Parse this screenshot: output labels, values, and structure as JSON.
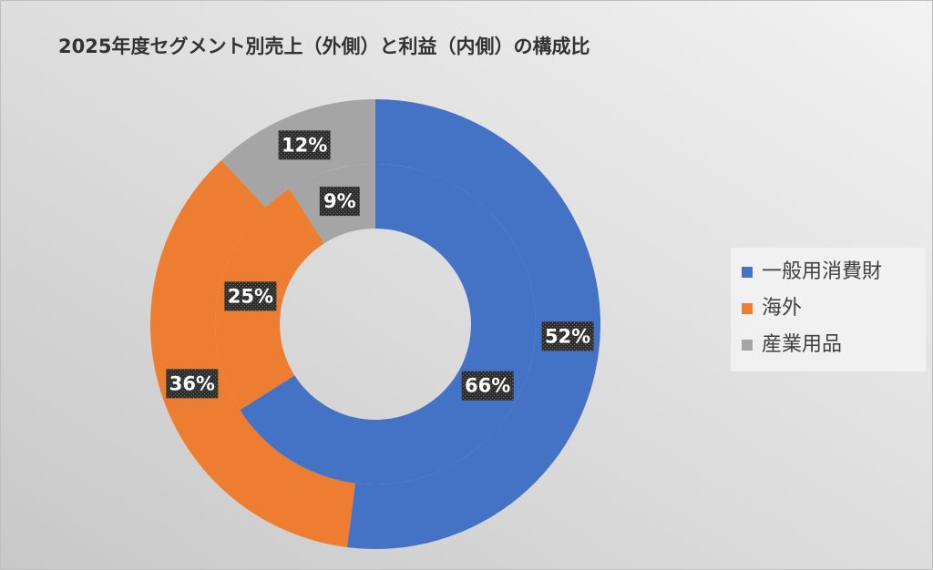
{
  "chart_data": {
    "type": "doughnut",
    "title": "2025年度セグメント別売上（外側）と利益（内側）の構成比",
    "categories": [
      "一般用消費財",
      "海外",
      "産業用品"
    ],
    "colors": [
      "#4472c4",
      "#ed7d31",
      "#a5a5a5"
    ],
    "series": [
      {
        "values": [
          52,
          36,
          12
        ],
        "value_labels": [
          "52%",
          "36%",
          "12%"
        ]
      },
      {
        "values": [
          66,
          25,
          9
        ],
        "value_labels": [
          "66%",
          "25%",
          "9%"
        ]
      }
    ],
    "legend": "right"
  }
}
